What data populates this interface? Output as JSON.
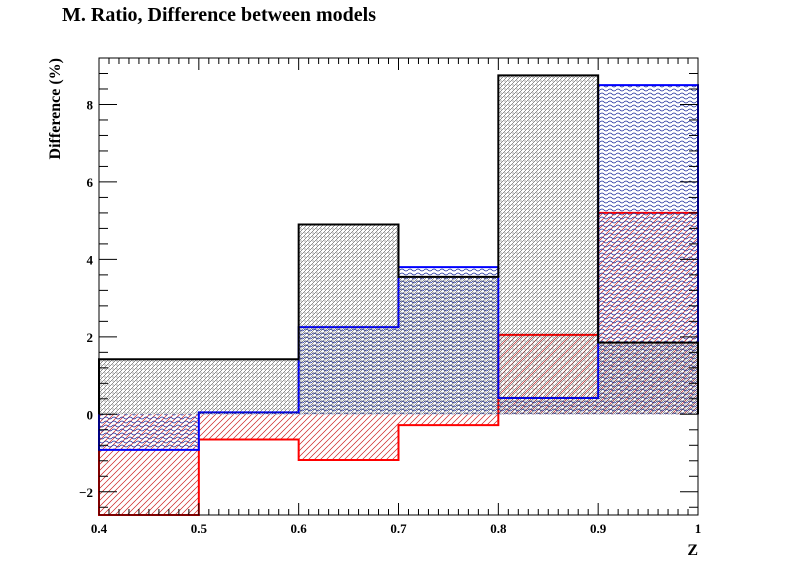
{
  "title": "M. Ratio, Difference between models",
  "chart_data": {
    "type": "histogram",
    "title": "M. Ratio, Difference between models",
    "xlabel": "Z",
    "ylabel": "Difference (%)",
    "xlim": [
      0.4,
      1.0
    ],
    "ylim": [
      -2.6,
      9.2
    ],
    "grid": false,
    "bin_edges": [
      0.4,
      0.5,
      0.6,
      0.7,
      0.8,
      0.9,
      1.0
    ],
    "x_ticks": [
      "0.4",
      "0.5",
      "0.6",
      "0.7",
      "0.8",
      "0.9",
      "1"
    ],
    "y_ticks": [
      "−2",
      "0",
      "2",
      "4",
      "6",
      "8"
    ],
    "y_tick_values": [
      -2,
      0,
      2,
      4,
      6,
      8
    ],
    "series": [
      {
        "color": "#ff0000",
        "fill": "red-hatch",
        "values": [
          -2.6,
          -0.65,
          -1.18,
          -0.28,
          2.05,
          5.2
        ]
      },
      {
        "color": "#0000ff",
        "fill": "blue-wave",
        "values": [
          -0.92,
          0.05,
          2.25,
          3.8,
          0.42,
          8.5
        ]
      },
      {
        "color": "#000000",
        "fill": "black-dots",
        "values": [
          1.42,
          1.42,
          4.9,
          3.55,
          8.75,
          1.85
        ]
      }
    ]
  }
}
